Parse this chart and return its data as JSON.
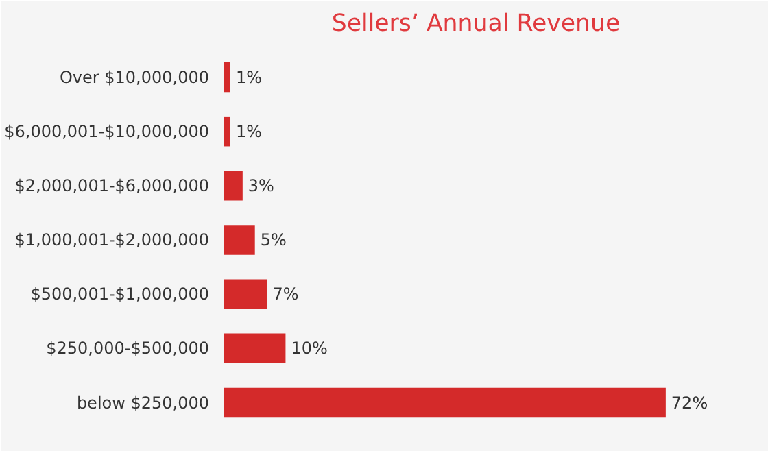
{
  "chart_data": {
    "type": "bar",
    "orientation": "horizontal",
    "title": "Sellers’ Annual Revenue",
    "categories": [
      "Over $10,000,000",
      "$6,000,001-$10,000,000",
      "$2,000,001-$6,000,000",
      "$1,000,001-$2,000,000",
      "$500,001-$1,000,000",
      "$250,000-$500,000",
      "below $250,000"
    ],
    "values": [
      1,
      1,
      3,
      5,
      7,
      10,
      72
    ],
    "value_labels": [
      "1%",
      "1%",
      "3%",
      "5%",
      "7%",
      "10%",
      "72%"
    ],
    "color": "#d42a2a",
    "grid": false
  }
}
